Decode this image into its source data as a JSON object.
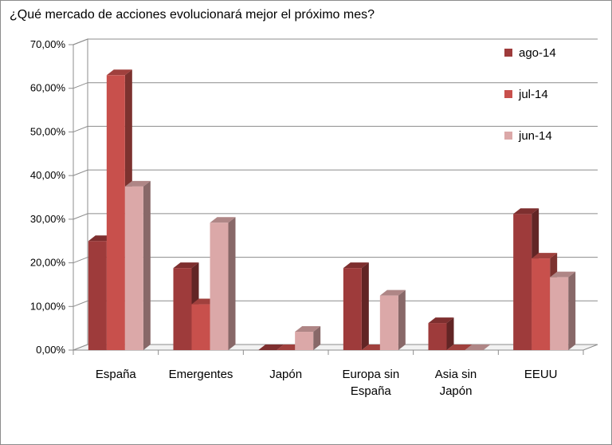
{
  "chart_data": {
    "type": "bar",
    "title": "¿Qué mercado de acciones evolucionará mejor el próximo mes?",
    "categories": [
      [
        "España"
      ],
      [
        "Emergentes"
      ],
      [
        "Japón"
      ],
      [
        "Europa sin",
        "España"
      ],
      [
        "Asia sin",
        "Japón"
      ],
      [
        "EEUU"
      ]
    ],
    "series": [
      {
        "name": "ago-14",
        "values": [
          25.0,
          18.8,
          0.0,
          18.8,
          6.2,
          31.2
        ],
        "color": "#9e3b3b"
      },
      {
        "name": "jul-14",
        "values": [
          63.0,
          10.5,
          0.0,
          0.0,
          0.0,
          21.0
        ],
        "color": "#c8504c"
      },
      {
        "name": "jun-14",
        "values": [
          37.5,
          29.2,
          4.2,
          12.5,
          0.0,
          16.7
        ],
        "color": "#dba8a8"
      }
    ],
    "yticks": [
      "0,00%",
      "10,00%",
      "20,00%",
      "30,00%",
      "40,00%",
      "50,00%",
      "60,00%",
      "70,00%"
    ],
    "ylim": [
      0,
      70
    ],
    "grid": true,
    "legend": "top-right"
  }
}
